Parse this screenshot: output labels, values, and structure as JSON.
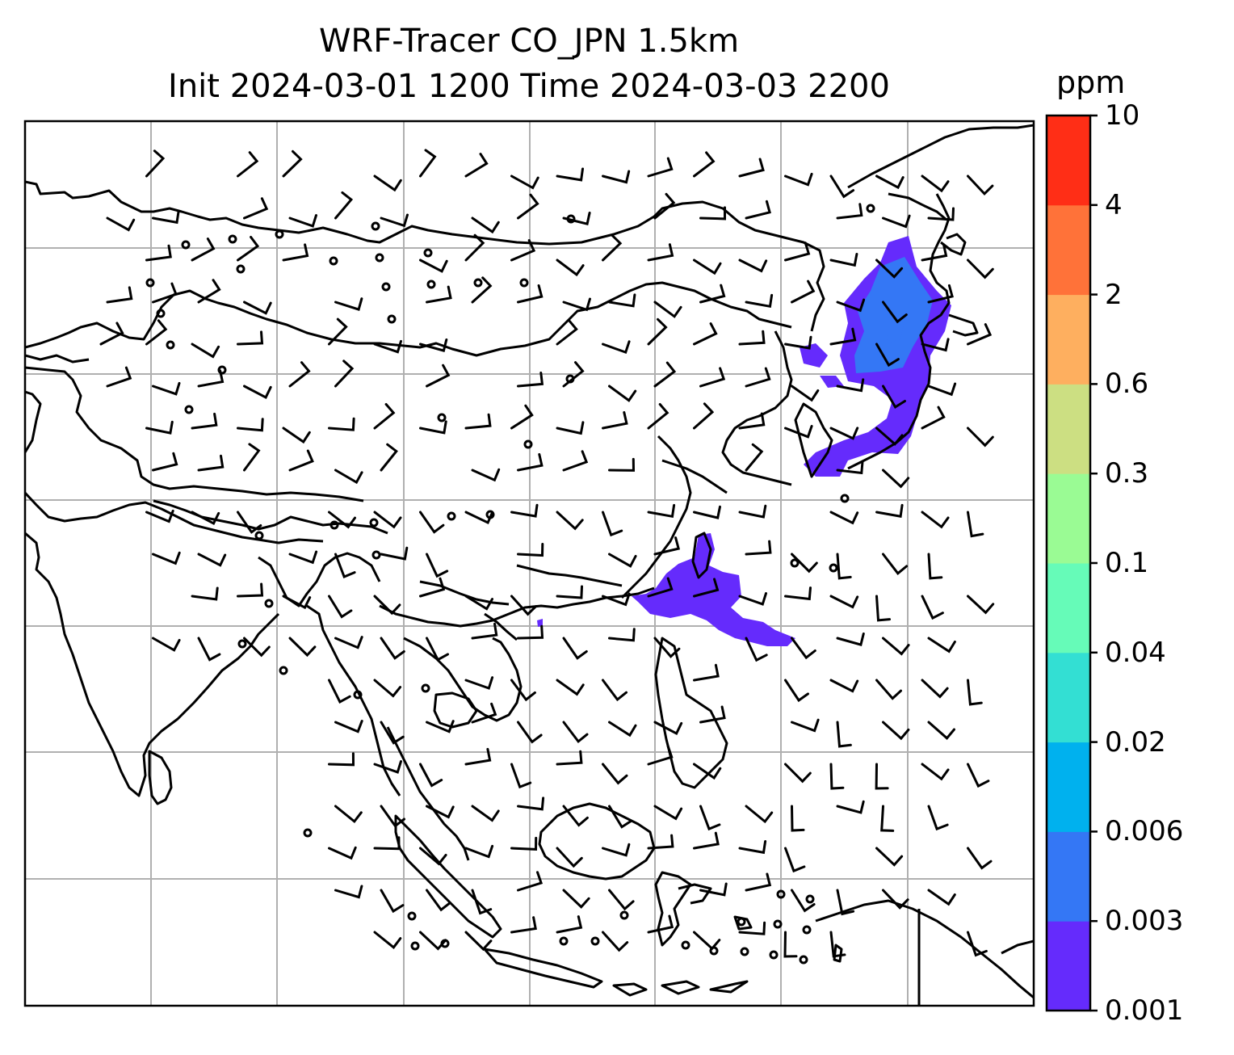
{
  "title": {
    "line1": "WRF-Tracer CO_JPN 1.5km",
    "line2": "Init 2024-03-01 1200 Time 2024-03-03 2200"
  },
  "colorbar": {
    "unit": "ppm",
    "levels": [
      "0.001",
      "0.003",
      "0.006",
      "0.02",
      "0.04",
      "0.1",
      "0.3",
      "0.6",
      "2",
      "4",
      "10"
    ],
    "colors": [
      "#652bfc",
      "#3477f5",
      "#00b1ee",
      "#33dfd3",
      "#66fbb8",
      "#9afb94",
      "#ccdf82",
      "#feaf5f",
      "#ff7239",
      "#ff2e16"
    ]
  },
  "map": {
    "gridlines": true,
    "coastline_color": "#000000",
    "gridline_color": "#b0b0b0",
    "wind_barbs": true
  }
}
